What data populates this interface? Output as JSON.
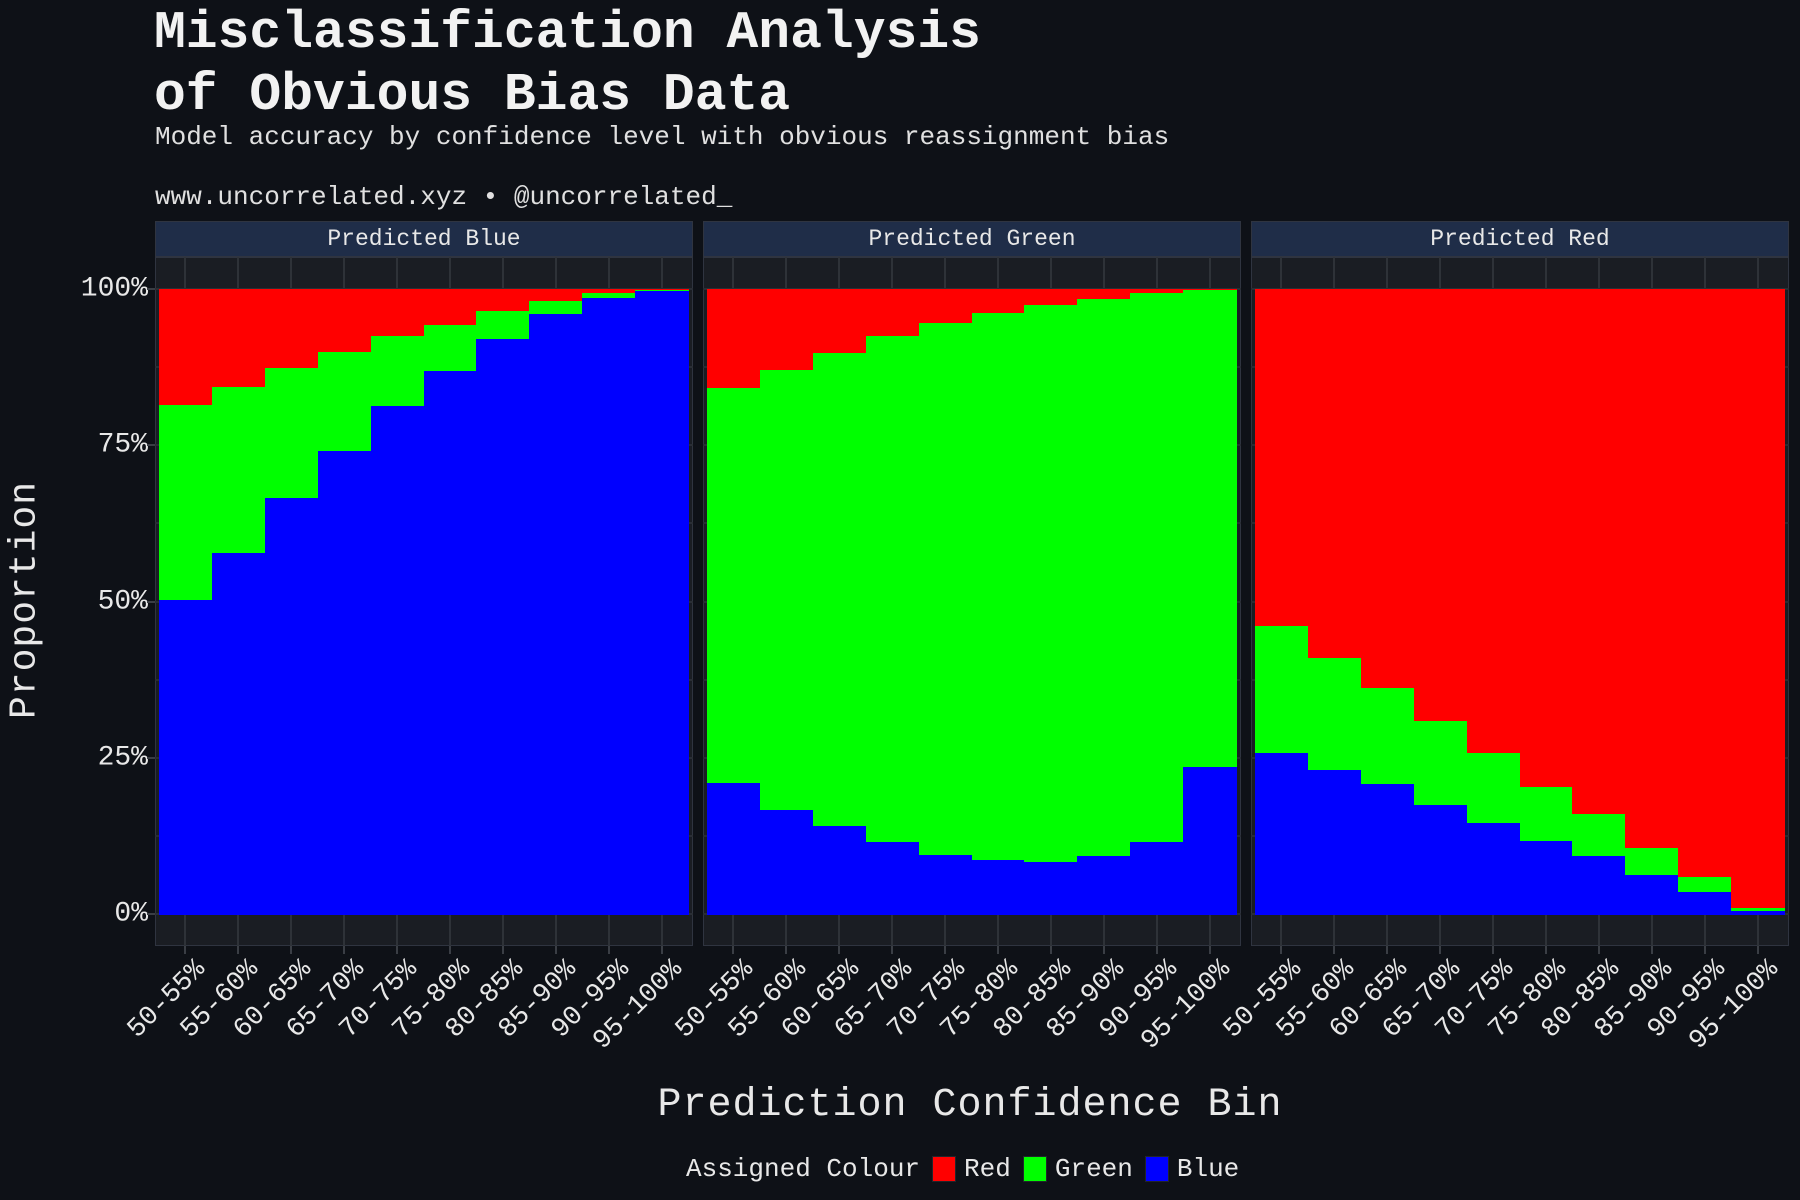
{
  "title_line1": "Misclassification Analysis",
  "title_line2": "of Obvious Bias Data",
  "subtitle": "Model accuracy by confidence level with obvious reassignment bias",
  "caption": "www.uncorrelated.xyz • @uncorrelated_",
  "colors": {
    "Red": "#ff0000",
    "Green": "#00ff00",
    "Blue": "#0000ff"
  },
  "legend": {
    "title": "Assigned Colour",
    "items": [
      "Red",
      "Green",
      "Blue"
    ]
  },
  "chart_data": {
    "type": "bar",
    "stacked": true,
    "title": "Misclassification Analysis of Obvious Bias Data",
    "subtitle": "Model accuracy by confidence level with obvious reassignment bias",
    "xlabel": "Prediction Confidence Bin",
    "ylabel": "Proportion",
    "ylim": [
      0,
      1
    ],
    "yticks": [
      "0%",
      "25%",
      "50%",
      "75%",
      "100%"
    ],
    "legend_title": "Assigned Colour",
    "legend_position": "bottom",
    "grid": true,
    "categories": [
      "50-55%",
      "55-60%",
      "60-65%",
      "65-70%",
      "70-75%",
      "75-80%",
      "80-85%",
      "85-90%",
      "90-95%",
      "95-100%"
    ],
    "facets": [
      {
        "name": "Predicted Blue",
        "series": [
          {
            "name": "Blue",
            "values": [
              0.504,
              0.578,
              0.667,
              0.742,
              0.814,
              0.87,
              0.921,
              0.961,
              0.987,
              0.998
            ]
          },
          {
            "name": "Green",
            "values": [
              0.312,
              0.266,
              0.207,
              0.158,
              0.112,
              0.073,
              0.045,
              0.021,
              0.008,
              0.001
            ]
          },
          {
            "name": "Red",
            "values": [
              0.184,
              0.156,
              0.126,
              0.1,
              0.074,
              0.057,
              0.034,
              0.018,
              0.005,
              0.001
            ]
          }
        ]
      },
      {
        "name": "Predicted Green",
        "series": [
          {
            "name": "Blue",
            "values": [
              0.21,
              0.167,
              0.141,
              0.116,
              0.096,
              0.087,
              0.084,
              0.094,
              0.116,
              0.236
            ]
          },
          {
            "name": "Green",
            "values": [
              0.633,
              0.705,
              0.757,
              0.809,
              0.85,
              0.875,
              0.892,
              0.891,
              0.878,
              0.763
            ]
          },
          {
            "name": "Red",
            "values": [
              0.157,
              0.128,
              0.102,
              0.075,
              0.054,
              0.038,
              0.024,
              0.015,
              0.006,
              0.001
            ]
          }
        ]
      },
      {
        "name": "Predicted Red",
        "series": [
          {
            "name": "Blue",
            "values": [
              0.258,
              0.232,
              0.209,
              0.175,
              0.146,
              0.117,
              0.094,
              0.063,
              0.036,
              0.006
            ]
          },
          {
            "name": "Green",
            "values": [
              0.203,
              0.178,
              0.153,
              0.134,
              0.112,
              0.087,
              0.067,
              0.044,
              0.024,
              0.004
            ]
          },
          {
            "name": "Red",
            "values": [
              0.539,
              0.59,
              0.638,
              0.691,
              0.742,
              0.796,
              0.839,
              0.893,
              0.94,
              0.99
            ]
          }
        ]
      }
    ]
  }
}
